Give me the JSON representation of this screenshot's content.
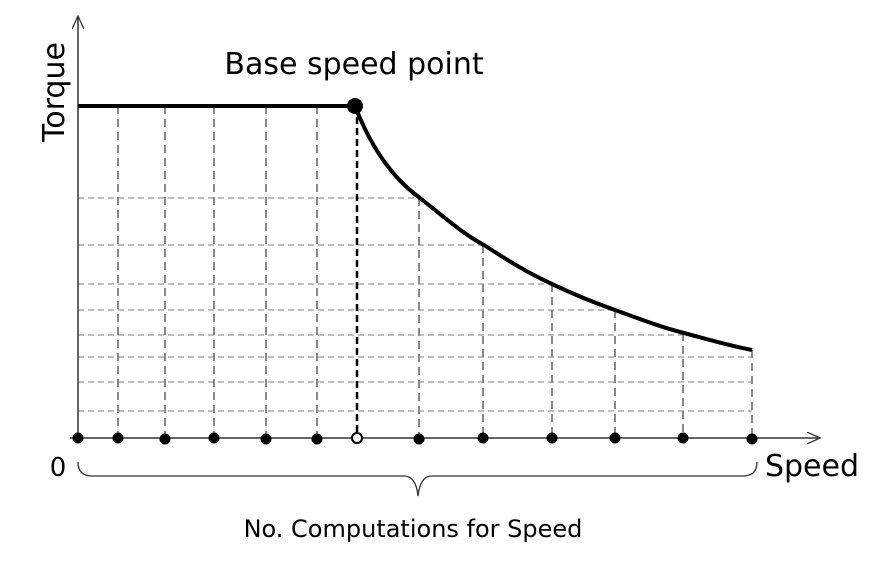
{
  "labels": {
    "y_axis": "Torque",
    "annotation": "Base speed point",
    "origin": "0",
    "x_axis": "Speed",
    "brace_label": "No. Computations for Speed"
  }
}
